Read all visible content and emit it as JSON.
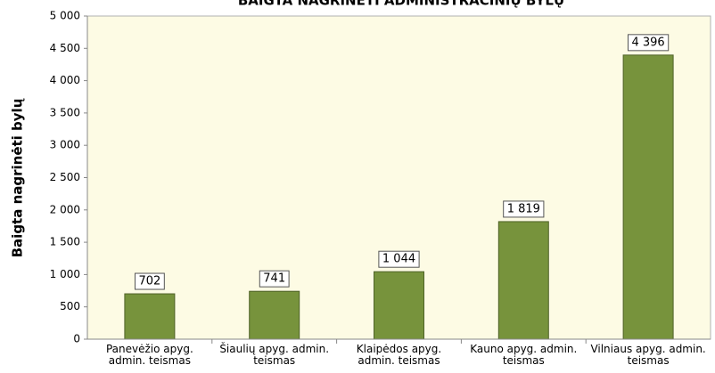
{
  "chart_data": {
    "type": "bar",
    "title": "BAIGTA NAGRINĖTI ADMINISTRACINIŲ BYLŲ",
    "y_label": "Baigta nagrinėti bylų",
    "categories": [
      "Panevėžio apyg. admin. teismas",
      "Šiaulių apyg. admin. teismas",
      "Klaipėdos apyg. admin. teismas",
      "Kauno apyg. admin. teismas",
      "Vilniaus apyg. admin. teismas"
    ],
    "values": [
      702,
      741,
      1044,
      1819,
      4396
    ],
    "value_labels": [
      "702",
      "741",
      "1 044",
      "1 819",
      "4 396"
    ],
    "color": "#77933c",
    "ylim": [
      0,
      5000
    ],
    "yticks": [
      0,
      500,
      {
        "value": 1000,
        "label": "1 000"
      },
      {
        "value": 1500,
        "label": "1 500"
      },
      {
        "value": 2000,
        "label": "2 000"
      },
      {
        "value": 2500,
        "label": "2 500"
      },
      {
        "value": 3000,
        "label": "3 000"
      },
      {
        "value": 3500,
        "label": "3 500"
      },
      {
        "value": 4000,
        "label": "4 000"
      },
      {
        "value": 4500,
        "label": "4 500"
      },
      {
        "value": 5000,
        "label": "5 000"
      }
    ],
    "grid": false
  }
}
